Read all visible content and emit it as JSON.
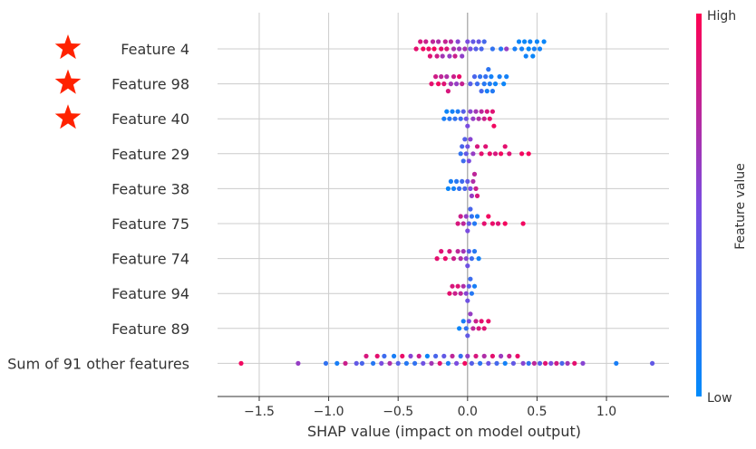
{
  "chart_data": {
    "type": "scatter",
    "subtype": "beeswarm",
    "title": "",
    "xlabel": "SHAP value (impact on model output)",
    "ylabel": "",
    "xlim": [
      -1.8,
      1.45
    ],
    "xticks": [
      -1.5,
      -1.0,
      -0.5,
      0.0,
      0.5,
      1.0
    ],
    "xtick_labels": [
      "−1.5",
      "−1.0",
      "−0.5",
      "0.0",
      "0.5",
      "1.0"
    ],
    "grid": true,
    "colorbar": {
      "label": "Feature value",
      "high_label": "High",
      "low_label": "Low",
      "low_color": "#008bfb",
      "high_color": "#ff0052"
    },
    "marker_color": "#ff2200",
    "features": [
      {
        "name": "Feature 4",
        "marked": true,
        "points": [
          {
            "x": -0.37,
            "v": 0.9
          },
          {
            "x": -0.34,
            "v": 0.85
          },
          {
            "x": -0.32,
            "v": 0.95
          },
          {
            "x": -0.3,
            "v": 0.8
          },
          {
            "x": -0.28,
            "v": 0.92
          },
          {
            "x": -0.27,
            "v": 0.88
          },
          {
            "x": -0.25,
            "v": 0.75
          },
          {
            "x": -0.24,
            "v": 0.97
          },
          {
            "x": -0.22,
            "v": 0.82
          },
          {
            "x": -0.21,
            "v": 0.7
          },
          {
            "x": -0.19,
            "v": 0.9
          },
          {
            "x": -0.18,
            "v": 0.65
          },
          {
            "x": -0.16,
            "v": 0.78
          },
          {
            "x": -0.15,
            "v": 0.86
          },
          {
            "x": -0.13,
            "v": 0.6
          },
          {
            "x": -0.12,
            "v": 0.72
          },
          {
            "x": -0.1,
            "v": 0.68
          },
          {
            "x": -0.09,
            "v": 0.8
          },
          {
            "x": -0.07,
            "v": 0.55
          },
          {
            "x": -0.06,
            "v": 0.62
          },
          {
            "x": -0.04,
            "v": 0.58
          },
          {
            "x": -0.02,
            "v": 0.66
          },
          {
            "x": 0.0,
            "v": 0.5
          },
          {
            "x": 0.02,
            "v": 0.45
          },
          {
            "x": 0.04,
            "v": 0.4
          },
          {
            "x": 0.06,
            "v": 0.35
          },
          {
            "x": 0.08,
            "v": 0.42
          },
          {
            "x": 0.1,
            "v": 0.3
          },
          {
            "x": 0.12,
            "v": 0.28
          },
          {
            "x": 0.18,
            "v": 0.2
          },
          {
            "x": 0.24,
            "v": 0.15
          },
          {
            "x": 0.28,
            "v": 0.6
          },
          {
            "x": 0.34,
            "v": 0.1
          },
          {
            "x": 0.37,
            "v": 0.05
          },
          {
            "x": 0.39,
            "v": 0.08
          },
          {
            "x": 0.41,
            "v": 0.03
          },
          {
            "x": 0.42,
            "v": 0.07
          },
          {
            "x": 0.44,
            "v": 0.02
          },
          {
            "x": 0.45,
            "v": 0.06
          },
          {
            "x": 0.47,
            "v": 0.04
          },
          {
            "x": 0.48,
            "v": 0.09
          },
          {
            "x": 0.5,
            "v": 0.05
          },
          {
            "x": 0.52,
            "v": 0.08
          },
          {
            "x": 0.55,
            "v": 0.04
          }
        ]
      },
      {
        "name": "Feature 98",
        "marked": true,
        "points": [
          {
            "x": -0.26,
            "v": 0.9
          },
          {
            "x": -0.23,
            "v": 0.82
          },
          {
            "x": -0.21,
            "v": 0.95
          },
          {
            "x": -0.19,
            "v": 0.75
          },
          {
            "x": -0.17,
            "v": 0.88
          },
          {
            "x": -0.15,
            "v": 0.7
          },
          {
            "x": -0.14,
            "v": 0.85
          },
          {
            "x": -0.12,
            "v": 0.65
          },
          {
            "x": -0.1,
            "v": 0.8
          },
          {
            "x": -0.08,
            "v": 0.6
          },
          {
            "x": -0.06,
            "v": 0.92
          },
          {
            "x": -0.04,
            "v": 0.78
          },
          {
            "x": 0.02,
            "v": 0.35
          },
          {
            "x": 0.05,
            "v": 0.3
          },
          {
            "x": 0.07,
            "v": 0.25
          },
          {
            "x": 0.09,
            "v": 0.2
          },
          {
            "x": 0.1,
            "v": 0.28
          },
          {
            "x": 0.12,
            "v": 0.15
          },
          {
            "x": 0.13,
            "v": 0.22
          },
          {
            "x": 0.14,
            "v": 0.1
          },
          {
            "x": 0.15,
            "v": 0.18
          },
          {
            "x": 0.16,
            "v": 0.12
          },
          {
            "x": 0.17,
            "v": 0.08
          },
          {
            "x": 0.18,
            "v": 0.14
          },
          {
            "x": 0.2,
            "v": 0.06
          },
          {
            "x": 0.23,
            "v": 0.1
          },
          {
            "x": 0.26,
            "v": 0.05
          },
          {
            "x": 0.28,
            "v": 0.08
          }
        ]
      },
      {
        "name": "Feature 40",
        "marked": true,
        "points": [
          {
            "x": -0.17,
            "v": 0.1
          },
          {
            "x": -0.15,
            "v": 0.05
          },
          {
            "x": -0.13,
            "v": 0.15
          },
          {
            "x": -0.11,
            "v": 0.08
          },
          {
            "x": -0.09,
            "v": 0.2
          },
          {
            "x": -0.07,
            "v": 0.12
          },
          {
            "x": -0.05,
            "v": 0.25
          },
          {
            "x": -0.03,
            "v": 0.35
          },
          {
            "x": -0.01,
            "v": 0.45
          },
          {
            "x": 0.0,
            "v": 0.5
          },
          {
            "x": 0.02,
            "v": 0.55
          },
          {
            "x": 0.04,
            "v": 0.6
          },
          {
            "x": 0.06,
            "v": 0.65
          },
          {
            "x": 0.08,
            "v": 0.7
          },
          {
            "x": 0.1,
            "v": 0.75
          },
          {
            "x": 0.12,
            "v": 0.8
          },
          {
            "x": 0.14,
            "v": 0.85
          },
          {
            "x": 0.16,
            "v": 0.9
          },
          {
            "x": 0.18,
            "v": 0.88
          },
          {
            "x": 0.19,
            "v": 0.95
          }
        ]
      },
      {
        "name": "Feature 29",
        "marked": false,
        "points": [
          {
            "x": -0.05,
            "v": 0.2
          },
          {
            "x": -0.04,
            "v": 0.3
          },
          {
            "x": -0.03,
            "v": 0.25
          },
          {
            "x": -0.02,
            "v": 0.35
          },
          {
            "x": -0.01,
            "v": 0.4
          },
          {
            "x": 0.0,
            "v": 0.45
          },
          {
            "x": 0.01,
            "v": 0.5
          },
          {
            "x": 0.02,
            "v": 0.55
          },
          {
            "x": 0.04,
            "v": 0.6
          },
          {
            "x": 0.07,
            "v": 0.85
          },
          {
            "x": 0.1,
            "v": 0.9
          },
          {
            "x": 0.13,
            "v": 0.88
          },
          {
            "x": 0.16,
            "v": 0.92
          },
          {
            "x": 0.2,
            "v": 0.85
          },
          {
            "x": 0.24,
            "v": 0.95
          },
          {
            "x": 0.27,
            "v": 0.9
          },
          {
            "x": 0.3,
            "v": 0.88
          },
          {
            "x": 0.39,
            "v": 0.95
          },
          {
            "x": 0.44,
            "v": 0.97
          }
        ]
      },
      {
        "name": "Feature 38",
        "marked": false,
        "points": [
          {
            "x": -0.14,
            "v": 0.05
          },
          {
            "x": -0.12,
            "v": 0.1
          },
          {
            "x": -0.1,
            "v": 0.08
          },
          {
            "x": -0.08,
            "v": 0.15
          },
          {
            "x": -0.06,
            "v": 0.2
          },
          {
            "x": -0.04,
            "v": 0.25
          },
          {
            "x": -0.02,
            "v": 0.3
          },
          {
            "x": 0.0,
            "v": 0.4
          },
          {
            "x": 0.02,
            "v": 0.5
          },
          {
            "x": 0.03,
            "v": 0.6
          },
          {
            "x": 0.04,
            "v": 0.7
          },
          {
            "x": 0.05,
            "v": 0.75
          },
          {
            "x": 0.06,
            "v": 0.8
          },
          {
            "x": 0.07,
            "v": 0.85
          }
        ]
      },
      {
        "name": "Feature 75",
        "marked": false,
        "points": [
          {
            "x": -0.07,
            "v": 0.85
          },
          {
            "x": -0.05,
            "v": 0.8
          },
          {
            "x": -0.03,
            "v": 0.75
          },
          {
            "x": -0.01,
            "v": 0.6
          },
          {
            "x": 0.0,
            "v": 0.5
          },
          {
            "x": 0.01,
            "v": 0.4
          },
          {
            "x": 0.02,
            "v": 0.3
          },
          {
            "x": 0.03,
            "v": 0.2
          },
          {
            "x": 0.05,
            "v": 0.15
          },
          {
            "x": 0.07,
            "v": 0.1
          },
          {
            "x": 0.12,
            "v": 0.9
          },
          {
            "x": 0.15,
            "v": 0.95
          },
          {
            "x": 0.18,
            "v": 0.92
          },
          {
            "x": 0.22,
            "v": 0.88
          },
          {
            "x": 0.27,
            "v": 0.96
          },
          {
            "x": 0.4,
            "v": 0.95
          }
        ]
      },
      {
        "name": "Feature 74",
        "marked": false,
        "points": [
          {
            "x": -0.22,
            "v": 0.9
          },
          {
            "x": -0.19,
            "v": 0.88
          },
          {
            "x": -0.16,
            "v": 0.92
          },
          {
            "x": -0.13,
            "v": 0.85
          },
          {
            "x": -0.1,
            "v": 0.8
          },
          {
            "x": -0.07,
            "v": 0.75
          },
          {
            "x": -0.05,
            "v": 0.7
          },
          {
            "x": -0.03,
            "v": 0.65
          },
          {
            "x": -0.01,
            "v": 0.55
          },
          {
            "x": 0.0,
            "v": 0.45
          },
          {
            "x": 0.01,
            "v": 0.35
          },
          {
            "x": 0.03,
            "v": 0.25
          },
          {
            "x": 0.05,
            "v": 0.15
          },
          {
            "x": 0.08,
            "v": 0.08
          }
        ]
      },
      {
        "name": "Feature 94",
        "marked": false,
        "points": [
          {
            "x": -0.13,
            "v": 0.9
          },
          {
            "x": -0.11,
            "v": 0.85
          },
          {
            "x": -0.09,
            "v": 0.8
          },
          {
            "x": -0.07,
            "v": 0.88
          },
          {
            "x": -0.05,
            "v": 0.75
          },
          {
            "x": -0.03,
            "v": 0.7
          },
          {
            "x": -0.01,
            "v": 0.55
          },
          {
            "x": 0.0,
            "v": 0.45
          },
          {
            "x": 0.01,
            "v": 0.35
          },
          {
            "x": 0.02,
            "v": 0.25
          },
          {
            "x": 0.03,
            "v": 0.15
          },
          {
            "x": 0.05,
            "v": 0.1
          }
        ]
      },
      {
        "name": "Feature 89",
        "marked": false,
        "points": [
          {
            "x": -0.06,
            "v": 0.05
          },
          {
            "x": -0.03,
            "v": 0.1
          },
          {
            "x": -0.01,
            "v": 0.2
          },
          {
            "x": 0.0,
            "v": 0.4
          },
          {
            "x": 0.01,
            "v": 0.5
          },
          {
            "x": 0.02,
            "v": 0.6
          },
          {
            "x": 0.04,
            "v": 0.75
          },
          {
            "x": 0.06,
            "v": 0.8
          },
          {
            "x": 0.08,
            "v": 0.85
          },
          {
            "x": 0.1,
            "v": 0.9
          },
          {
            "x": 0.12,
            "v": 0.88
          },
          {
            "x": 0.15,
            "v": 0.92
          }
        ]
      },
      {
        "name": "Sum of 91 other features",
        "marked": false,
        "points": [
          {
            "x": -1.63,
            "v": 0.95
          },
          {
            "x": -1.22,
            "v": 0.6
          },
          {
            "x": -1.02,
            "v": 0.2
          },
          {
            "x": -0.94,
            "v": 0.1
          },
          {
            "x": -0.88,
            "v": 0.8
          },
          {
            "x": -0.8,
            "v": 0.4
          },
          {
            "x": -0.76,
            "v": 0.3
          },
          {
            "x": -0.73,
            "v": 0.85
          },
          {
            "x": -0.68,
            "v": 0.15
          },
          {
            "x": -0.65,
            "v": 0.9
          },
          {
            "x": -0.62,
            "v": 0.5
          },
          {
            "x": -0.6,
            "v": 0.25
          },
          {
            "x": -0.56,
            "v": 0.7
          },
          {
            "x": -0.53,
            "v": 0.1
          },
          {
            "x": -0.5,
            "v": 0.35
          },
          {
            "x": -0.47,
            "v": 0.92
          },
          {
            "x": -0.44,
            "v": 0.15
          },
          {
            "x": -0.41,
            "v": 0.55
          },
          {
            "x": -0.38,
            "v": 0.2
          },
          {
            "x": -0.35,
            "v": 0.8
          },
          {
            "x": -0.32,
            "v": 0.45
          },
          {
            "x": -0.29,
            "v": 0.05
          },
          {
            "x": -0.26,
            "v": 0.65
          },
          {
            "x": -0.23,
            "v": 0.3
          },
          {
            "x": -0.2,
            "v": 0.88
          },
          {
            "x": -0.17,
            "v": 0.4
          },
          {
            "x": -0.14,
            "v": 0.12
          },
          {
            "x": -0.11,
            "v": 0.75
          },
          {
            "x": -0.08,
            "v": 0.5
          },
          {
            "x": -0.05,
            "v": 0.22
          },
          {
            "x": -0.02,
            "v": 0.95
          },
          {
            "x": 0.0,
            "v": 0.6
          },
          {
            "x": 0.03,
            "v": 0.35
          },
          {
            "x": 0.06,
            "v": 0.85
          },
          {
            "x": 0.09,
            "v": 0.18
          },
          {
            "x": 0.12,
            "v": 0.7
          },
          {
            "x": 0.15,
            "v": 0.45
          },
          {
            "x": 0.18,
            "v": 0.9
          },
          {
            "x": 0.21,
            "v": 0.28
          },
          {
            "x": 0.24,
            "v": 0.62
          },
          {
            "x": 0.27,
            "v": 0.08
          },
          {
            "x": 0.3,
            "v": 0.8
          },
          {
            "x": 0.33,
            "v": 0.4
          },
          {
            "x": 0.36,
            "v": 0.92
          },
          {
            "x": 0.4,
            "v": 0.55
          },
          {
            "x": 0.44,
            "v": 0.2
          },
          {
            "x": 0.48,
            "v": 0.75
          },
          {
            "x": 0.52,
            "v": 0.35
          },
          {
            "x": 0.56,
            "v": 0.88
          },
          {
            "x": 0.6,
            "v": 0.5
          },
          {
            "x": 0.64,
            "v": 0.82
          },
          {
            "x": 0.68,
            "v": 0.3
          },
          {
            "x": 0.72,
            "v": 0.65
          },
          {
            "x": 0.77,
            "v": 0.9
          },
          {
            "x": 0.83,
            "v": 0.55
          },
          {
            "x": 1.07,
            "v": 0.1
          },
          {
            "x": 1.33,
            "v": 0.4
          }
        ]
      }
    ]
  }
}
